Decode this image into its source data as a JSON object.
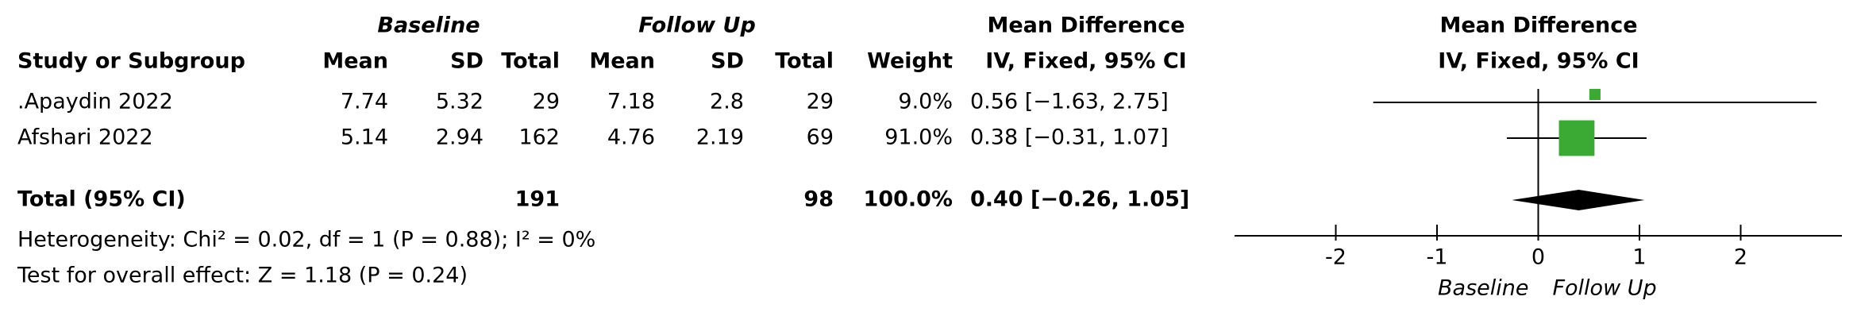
{
  "chart_data": {
    "type": "forest",
    "group_headers": [
      "Baseline",
      "Follow Up"
    ],
    "effect_header": [
      "Mean Difference",
      "IV, Fixed, 95% CI"
    ],
    "plot_header": [
      "Mean Difference",
      "IV, Fixed, 95% CI"
    ],
    "columns": [
      "Study or Subgroup",
      "Mean",
      "SD",
      "Total",
      "Mean",
      "SD",
      "Total",
      "Weight"
    ],
    "studies": [
      {
        "name": ".Apaydin 2022",
        "mean1": 7.74,
        "sd1": 5.32,
        "n1": 29,
        "mean2": 7.18,
        "sd2": 2.8,
        "n2": 29,
        "weight": 9.0,
        "weight_label": "9.0%",
        "md": 0.56,
        "lo": -1.63,
        "hi": 2.75,
        "ci_label": "0.56 [−1.63, 2.75]"
      },
      {
        "name": "Afshari 2022",
        "mean1": 5.14,
        "sd1": 2.94,
        "n1": 162,
        "mean2": 4.76,
        "sd2": 2.19,
        "n2": 69,
        "weight": 91.0,
        "weight_label": "91.0%",
        "md": 0.38,
        "lo": -0.31,
        "hi": 1.07,
        "ci_label": "0.38 [−0.31, 1.07]"
      }
    ],
    "total": {
      "name": "Total (95% CI)",
      "n1": 191,
      "n2": 98,
      "weight": 100.0,
      "weight_label": "100.0%",
      "md": 0.4,
      "lo": -0.26,
      "hi": 1.05,
      "ci_label": "0.40 [−0.26, 1.05]"
    },
    "heterogeneity": "Heterogeneity: Chi² = 0.02, df = 1 (P = 0.88); I² = 0%",
    "overall_effect": "Test for overall effect: Z = 1.18 (P = 0.24)",
    "xlim": [
      -3,
      3
    ],
    "xticks": [
      -2,
      -1,
      0,
      1,
      2
    ],
    "xlabels": [
      "Baseline",
      "Follow Up"
    ],
    "color": "#3aaa35"
  }
}
